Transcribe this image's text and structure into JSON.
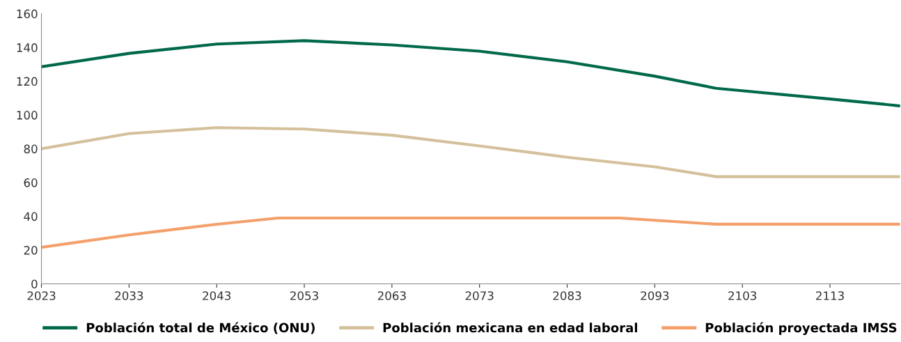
{
  "chart_data": {
    "type": "line",
    "xlim": [
      2023,
      2121
    ],
    "xticks": [
      2023,
      2033,
      2043,
      2053,
      2063,
      2073,
      2083,
      2093,
      2103,
      2113
    ],
    "ylim": [
      0,
      160
    ],
    "yticks": [
      0,
      20,
      40,
      60,
      80,
      100,
      120,
      140,
      160
    ],
    "grid": false,
    "legend": "bottom",
    "line_style": "solid",
    "marker": "none",
    "series": [
      {
        "name": "Población total de México (ONU)",
        "color": "#00694a",
        "x": [
          2023,
          2033,
          2043,
          2053,
          2063,
          2073,
          2083,
          2093,
          2100,
          2113,
          2121
        ],
        "values": [
          128.6,
          136.5,
          142,
          144,
          141.5,
          137.8,
          131.5,
          123,
          115.8,
          109.5,
          105.4
        ]
      },
      {
        "name": "Población mexicana en edad laboral",
        "color": "#d4c19c",
        "x": [
          2023,
          2033,
          2043,
          2053,
          2063,
          2073,
          2083,
          2093,
          2100,
          2121
        ],
        "values": [
          80,
          89,
          92.5,
          91.7,
          88,
          81.7,
          75,
          69.3,
          63.5,
          63.5
        ]
      },
      {
        "name": "Población proyectada IMSS",
        "color": "#f4a06b",
        "x": [
          2023,
          2033,
          2043,
          2050,
          2089,
          2100,
          2121
        ],
        "values": [
          21.6,
          29,
          35.3,
          39,
          39,
          35.3,
          35.3
        ]
      }
    ]
  }
}
